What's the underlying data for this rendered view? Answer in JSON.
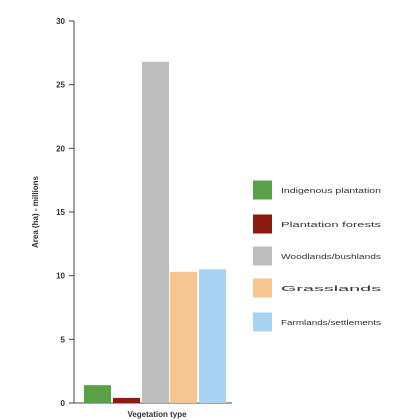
{
  "chart_data": {
    "type": "bar",
    "xlabel": "Vegetation type",
    "ylabel": "Area (ha) - millions",
    "ylim": [
      0,
      30
    ],
    "yticks": [
      0,
      5,
      10,
      15,
      20,
      25,
      30
    ],
    "grid": false,
    "legend_position": "right",
    "categories": [
      "Indigenous plantation",
      "Plantation forests",
      "Woodlands/bushlands",
      "Grasslands",
      "Farmlands/settlements"
    ],
    "values": [
      1.4,
      0.4,
      26.8,
      10.3,
      10.5
    ],
    "colors": [
      "#5aa046",
      "#8b1a10",
      "#bdbdbd",
      "#f7c690",
      "#a8d4f2"
    ]
  }
}
